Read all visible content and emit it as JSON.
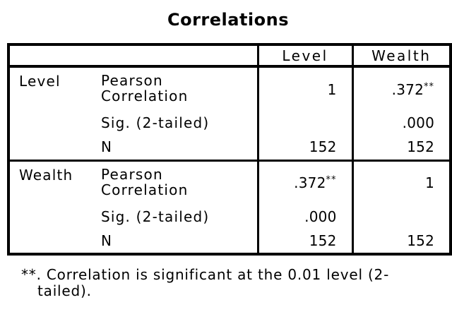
{
  "page": {
    "background_color": "#ffffff",
    "text_color": "#000000",
    "border_color": "#000000"
  },
  "title": "Correlations",
  "table": {
    "column_headers": [
      "Level",
      "Wealth"
    ],
    "groups": [
      {
        "variable": "Level",
        "rows": [
          {
            "label": "Pearson\nCorrelation",
            "level_value": "1",
            "wealth_value": ".372",
            "wealth_sup": "**"
          },
          {
            "label": "Sig. (2-tailed)",
            "level_value": "",
            "wealth_value": ".000"
          },
          {
            "label": "N",
            "level_value": "152",
            "wealth_value": "152"
          }
        ]
      },
      {
        "variable": "Wealth",
        "rows": [
          {
            "label": "Pearson\nCorrelation",
            "level_value": ".372",
            "level_sup": "**",
            "wealth_value": "1"
          },
          {
            "label": "Sig. (2-tailed)",
            "level_value": ".000",
            "wealth_value": ""
          },
          {
            "label": "N",
            "level_value": "152",
            "wealth_value": "152"
          }
        ]
      }
    ]
  },
  "footnote": {
    "line1": "**. Correlation is significant at the 0.01 level (2-",
    "line2": "tailed)."
  }
}
